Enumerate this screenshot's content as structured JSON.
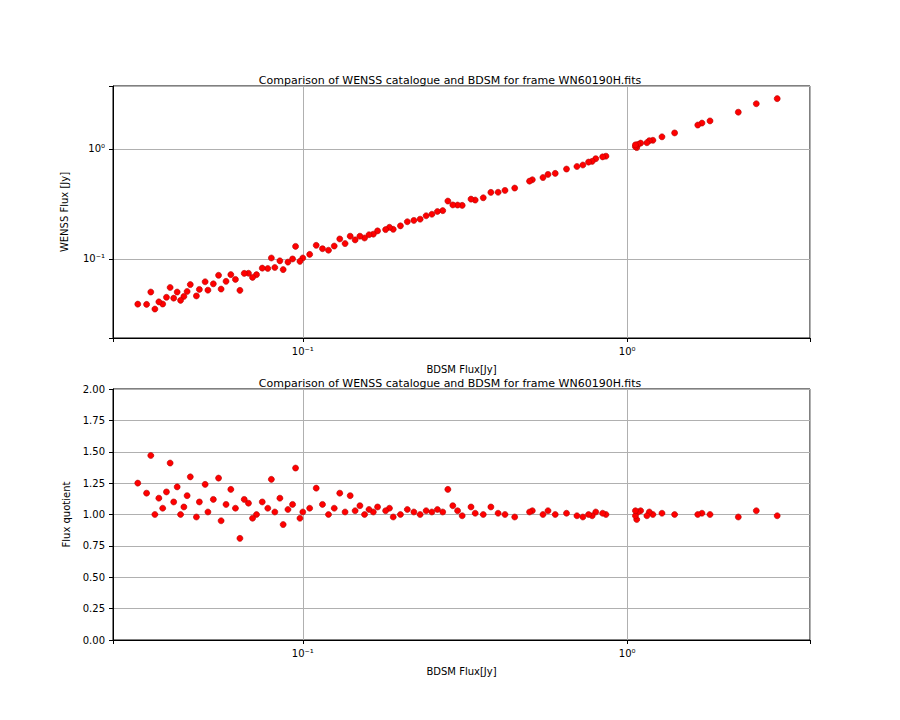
{
  "chart_data": [
    {
      "type": "scatter",
      "title": "Comparison of WENSS catalogue and BDSM for frame WN60190H.fits",
      "x_label": "BDSM Flux[Jy]",
      "y_label": "WENSS Flux [Jy]",
      "log": true,
      "grid": true,
      "color": "#ff0000",
      "marker": "circle",
      "xlim": [
        0.026,
        3.66
      ],
      "ylim": [
        0.0191,
        3.74
      ],
      "xticks": [
        {
          "value": 0.1,
          "label": "10⁻¹"
        },
        {
          "value": 1,
          "label": "10⁰"
        }
      ],
      "yticks": [
        {
          "value": 0.1,
          "label": "10⁻¹"
        },
        {
          "value": 1,
          "label": "10⁰"
        }
      ],
      "x": [
        2.9,
        2.5,
        2.2,
        1.8,
        1.7,
        1.65,
        1.4,
        1.28,
        1.2,
        1.17,
        1.15,
        1.1,
        1.08,
        1.07,
        1.06,
        1.06,
        0.86,
        0.84,
        0.8,
        0.78,
        0.76,
        0.73,
        0.7,
        0.65,
        0.6,
        0.57,
        0.55,
        0.51,
        0.5,
        0.45,
        0.42,
        0.4,
        0.38,
        0.36,
        0.34,
        0.33,
        0.31,
        0.3,
        0.29,
        0.28,
        0.27,
        0.26,
        0.25,
        0.24,
        0.23,
        0.22,
        0.21,
        0.2,
        0.19,
        0.185,
        0.18,
        0.17,
        0.165,
        0.16,
        0.155,
        0.15,
        0.145,
        0.14,
        0.135,
        0.13,
        0.125,
        0.12,
        0.115,
        0.11,
        0.105,
        0.1,
        0.098,
        0.095,
        0.093,
        0.09,
        0.087,
        0.085,
        0.082,
        0.08,
        0.078,
        0.075,
        0.072,
        0.07,
        0.068,
        0.066,
        0.064,
        0.062,
        0.06,
        0.058,
        0.056,
        0.055,
        0.053,
        0.051,
        0.05,
        0.048,
        0.047,
        0.045,
        0.044,
        0.043,
        0.042,
        0.041,
        0.04,
        0.039,
        0.038,
        0.037,
        0.036,
        0.035,
        0.034,
        0.033,
        0.031
      ],
      "values": [
        2.87,
        2.58,
        2.16,
        1.8,
        1.72,
        1.65,
        1.4,
        1.29,
        1.2,
        1.19,
        1.14,
        1.13,
        1.1,
        1.03,
        1.05,
        1.09,
        0.86,
        0.848,
        0.816,
        0.772,
        0.76,
        0.715,
        0.693,
        0.657,
        0.6,
        0.587,
        0.55,
        0.525,
        0.51,
        0.441,
        0.42,
        0.404,
        0.403,
        0.36,
        0.343,
        0.35,
        0.307,
        0.309,
        0.31,
        0.336,
        0.275,
        0.27,
        0.255,
        0.247,
        0.23,
        0.224,
        0.218,
        0.2,
        0.186,
        0.194,
        0.185,
        0.18,
        0.168,
        0.166,
        0.155,
        0.161,
        0.149,
        0.161,
        0.138,
        0.152,
        0.131,
        0.12,
        0.124,
        0.133,
        0.11,
        0.102,
        0.0951,
        0.13,
        0.1,
        0.0936,
        0.08,
        0.0961,
        0.0836,
        0.102,
        0.0819,
        0.0825,
        0.072,
        0.0679,
        0.0741,
        0.0739,
        0.0518,
        0.0651,
        0.072,
        0.0626,
        0.0532,
        0.071,
        0.0594,
        0.052,
        0.062,
        0.0528,
        0.0461,
        0.0585,
        0.0506,
        0.0456,
        0.042,
        0.05,
        0.044,
        0.055,
        0.0448,
        0.0389,
        0.0407,
        0.035,
        0.05,
        0.0386,
        0.0388
      ]
    },
    {
      "type": "scatter",
      "title": "Comparison of WENSS catalogue and BDSM for frame WN60190H.fits",
      "x_label": "BDSM Flux[Jy]",
      "y_label": "Flux quotient",
      "log": "x",
      "grid": true,
      "color": "#ff0000",
      "marker": "circle",
      "xlim": [
        0.026,
        3.66
      ],
      "ylim": [
        0,
        2
      ],
      "xticks": [
        {
          "value": 0.1,
          "label": "10⁻¹"
        },
        {
          "value": 1,
          "label": "10⁰"
        }
      ],
      "yticks": [
        {
          "value": 0,
          "label": "0.00"
        },
        {
          "value": 0.25,
          "label": "0.25"
        },
        {
          "value": 0.5,
          "label": "0.50"
        },
        {
          "value": 0.75,
          "label": "0.75"
        },
        {
          "value": 1,
          "label": "1.00"
        },
        {
          "value": 1.25,
          "label": "1.25"
        },
        {
          "value": 1.5,
          "label": "1.50"
        },
        {
          "value": 1.75,
          "label": "1.75"
        },
        {
          "value": 2,
          "label": "2.00"
        }
      ],
      "x": [
        2.9,
        2.5,
        2.2,
        1.8,
        1.7,
        1.65,
        1.4,
        1.28,
        1.2,
        1.17,
        1.15,
        1.1,
        1.08,
        1.07,
        1.06,
        1.06,
        0.86,
        0.84,
        0.8,
        0.78,
        0.76,
        0.73,
        0.7,
        0.65,
        0.6,
        0.57,
        0.55,
        0.51,
        0.5,
        0.45,
        0.42,
        0.4,
        0.38,
        0.36,
        0.34,
        0.33,
        0.31,
        0.3,
        0.29,
        0.28,
        0.27,
        0.26,
        0.25,
        0.24,
        0.23,
        0.22,
        0.21,
        0.2,
        0.19,
        0.185,
        0.18,
        0.17,
        0.165,
        0.16,
        0.155,
        0.15,
        0.145,
        0.14,
        0.135,
        0.13,
        0.125,
        0.12,
        0.115,
        0.11,
        0.105,
        0.1,
        0.098,
        0.095,
        0.093,
        0.09,
        0.087,
        0.085,
        0.082,
        0.08,
        0.078,
        0.075,
        0.072,
        0.07,
        0.068,
        0.066,
        0.064,
        0.062,
        0.06,
        0.058,
        0.056,
        0.055,
        0.053,
        0.051,
        0.05,
        0.048,
        0.047,
        0.045,
        0.044,
        0.043,
        0.042,
        0.041,
        0.04,
        0.039,
        0.038,
        0.037,
        0.036,
        0.035,
        0.034,
        0.033,
        0.031
      ],
      "values": [
        0.99,
        1.03,
        0.98,
        1.0,
        1.01,
        1.0,
        1.0,
        1.01,
        1.0,
        1.02,
        0.99,
        1.03,
        1.02,
        0.96,
        0.99,
        1.03,
        1.0,
        1.01,
        1.02,
        0.99,
        1.0,
        0.98,
        0.99,
        1.01,
        1.0,
        1.03,
        1.0,
        1.03,
        1.02,
        0.98,
        1.0,
        1.01,
        1.06,
        1.0,
        1.01,
        1.06,
        0.99,
        1.03,
        1.07,
        1.2,
        1.02,
        1.04,
        1.02,
        1.03,
        1.0,
        1.02,
        1.04,
        1.0,
        0.98,
        1.05,
        1.03,
        1.06,
        1.02,
        1.04,
        1.0,
        1.07,
        1.03,
        1.15,
        1.02,
        1.17,
        1.05,
        1.0,
        1.08,
        1.21,
        1.05,
        1.02,
        0.97,
        1.37,
        1.08,
        1.04,
        0.92,
        1.13,
        1.02,
        1.28,
        1.05,
        1.1,
        1.0,
        0.97,
        1.09,
        1.12,
        0.81,
        1.05,
        1.2,
        1.08,
        0.95,
        1.29,
        1.12,
        1.02,
        1.24,
        1.1,
        0.98,
        1.3,
        1.15,
        1.06,
        1.0,
        1.22,
        1.1,
        1.41,
        1.18,
        1.05,
        1.13,
        1.0,
        1.47,
        1.17,
        1.25
      ]
    }
  ]
}
